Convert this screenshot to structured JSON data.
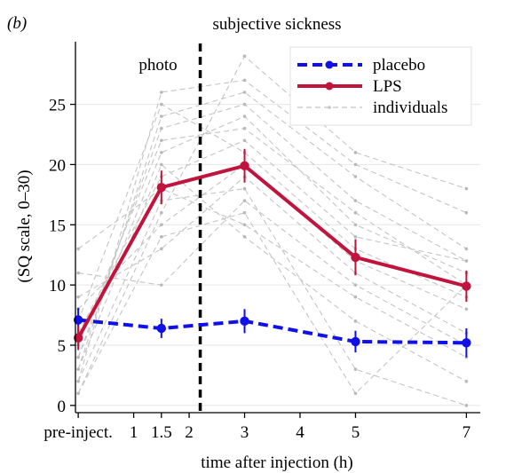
{
  "panel_label": "(b)",
  "chart_data": {
    "type": "line",
    "title": "subjective sickness",
    "xlabel": "time after injection (h)",
    "ylabel": "(SQ scale, 0–30)",
    "xlim": [
      -0.05,
      7.25
    ],
    "ylim": [
      -0.6,
      30.2
    ],
    "x_ticks": [
      0,
      1,
      1.5,
      2,
      3,
      4,
      5,
      7
    ],
    "x_tick_labels": [
      "pre-inject.",
      "1",
      "1.5",
      "2",
      "3",
      "4",
      "5",
      "7"
    ],
    "y_ticks": [
      0,
      5,
      10,
      15,
      20,
      25
    ],
    "y_tick_labels": [
      "0",
      "5",
      "10",
      "15",
      "20",
      "25"
    ],
    "grid": "horizontal",
    "legend_position": "top-right",
    "vline": {
      "x": 2.2,
      "label": "photo"
    },
    "series": [
      {
        "name": "placebo",
        "color": "#1010e8",
        "style": "dashed",
        "x": [
          0,
          1.5,
          3,
          5,
          7
        ],
        "values": [
          7.1,
          6.4,
          7.0,
          5.3,
          5.2
        ],
        "err": [
          1.0,
          0.8,
          1.0,
          0.9,
          1.2
        ]
      },
      {
        "name": "LPS",
        "color": "#c0143c",
        "style": "solid",
        "x": [
          0,
          1.5,
          3,
          5,
          7
        ],
        "values": [
          5.6,
          18.1,
          19.9,
          12.3,
          9.9
        ],
        "err": [
          1.0,
          1.4,
          1.4,
          1.5,
          1.3
        ]
      }
    ],
    "individuals": {
      "name": "individuals",
      "color": "#c4c4c4",
      "x": [
        0,
        1.5,
        3,
        5,
        7
      ],
      "lines": [
        [
          1,
          16,
          29,
          21,
          18
        ],
        [
          2,
          26,
          27,
          20,
          16
        ],
        [
          3,
          24,
          26,
          19,
          13
        ],
        [
          4,
          23,
          25,
          17,
          12
        ],
        [
          4,
          21,
          24,
          15,
          11
        ],
        [
          5,
          22,
          23,
          16,
          10
        ],
        [
          6,
          19,
          22,
          14,
          12
        ],
        [
          7,
          25,
          21,
          13,
          9
        ],
        [
          8,
          15,
          20,
          12,
          8
        ],
        [
          9,
          13,
          19,
          11,
          6
        ],
        [
          11,
          10,
          17,
          10,
          5
        ],
        [
          13,
          18,
          15,
          9,
          4
        ],
        [
          3,
          20,
          14,
          7,
          2
        ],
        [
          2,
          17,
          18,
          3,
          0
        ],
        [
          1,
          14,
          16,
          1,
          10
        ]
      ]
    }
  }
}
